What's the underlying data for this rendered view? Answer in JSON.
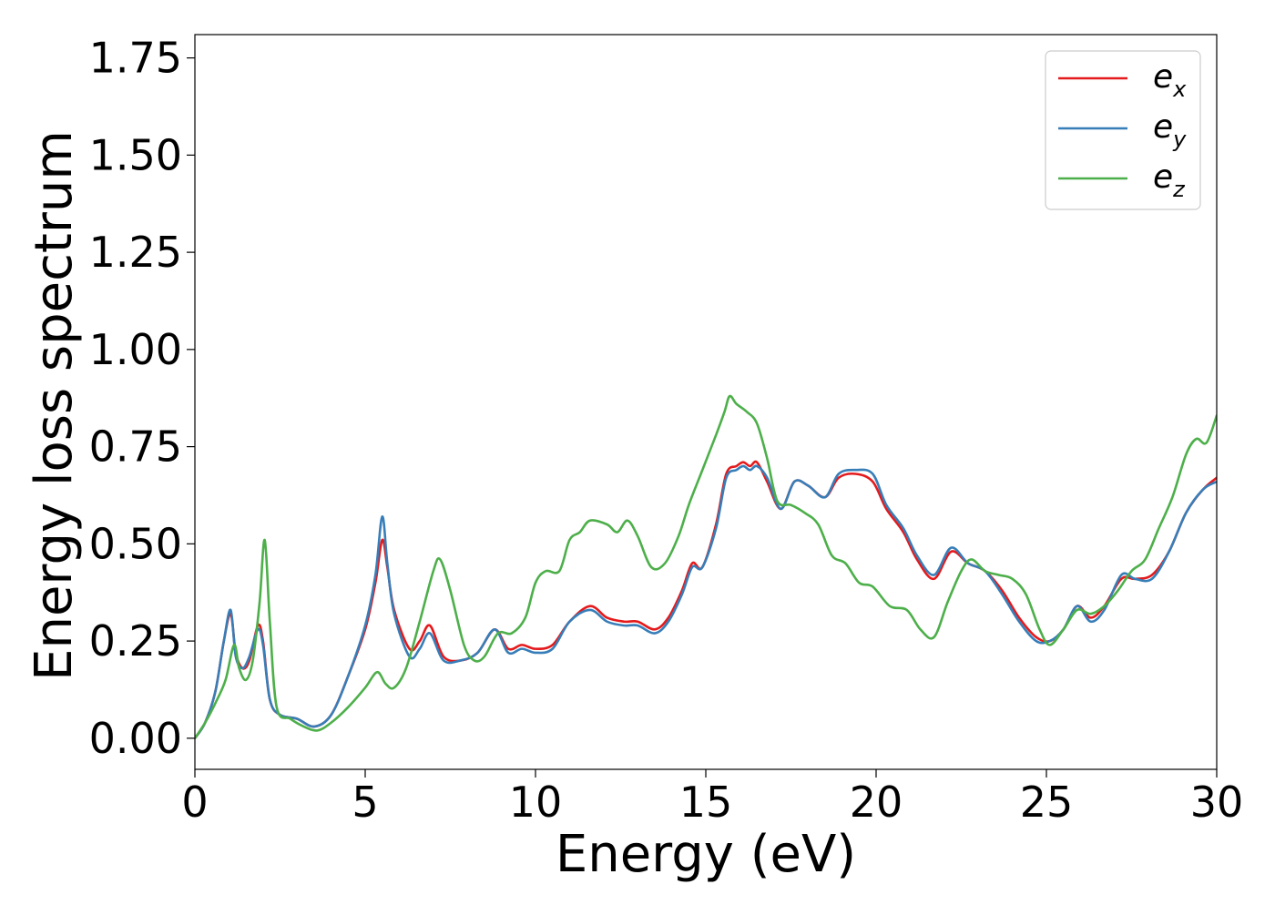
{
  "chart_data": {
    "type": "line",
    "title": "",
    "xlabel": "Energy (eV)",
    "ylabel": "Energy loss spectrum",
    "xlim": [
      0,
      30
    ],
    "ylim": [
      -0.08,
      1.81
    ],
    "xticks": [
      0,
      5,
      10,
      15,
      20,
      25,
      30
    ],
    "xtick_labels": [
      "0",
      "5",
      "10",
      "15",
      "20",
      "25",
      "30"
    ],
    "yticks": [
      0,
      0.25,
      0.5,
      0.75,
      1.0,
      1.25,
      1.5,
      1.75
    ],
    "ytick_labels": [
      "0.00",
      "0.25",
      "0.50",
      "0.75",
      "1.00",
      "1.25",
      "1.50",
      "1.75"
    ],
    "grid": false,
    "legend_position": "top-right",
    "series": [
      {
        "name": "e_x",
        "legend": {
          "base": "e",
          "sub": "x"
        },
        "color": "#e41a1c",
        "x": [
          0,
          0.3,
          0.6,
          0.85,
          1.05,
          1.2,
          1.4,
          1.6,
          1.85,
          2.0,
          2.2,
          2.5,
          3.0,
          3.5,
          4.0,
          4.5,
          5.0,
          5.3,
          5.5,
          5.65,
          5.85,
          6.3,
          6.6,
          6.9,
          7.3,
          7.8,
          8.3,
          8.8,
          9.2,
          9.6,
          10.0,
          10.5,
          11.0,
          11.6,
          12.1,
          12.6,
          13.0,
          13.5,
          13.9,
          14.3,
          14.6,
          14.9,
          15.3,
          15.6,
          15.9,
          16.1,
          16.3,
          16.5,
          16.8,
          17.2,
          17.6,
          18.0,
          18.5,
          18.9,
          19.4,
          19.9,
          20.3,
          20.8,
          21.2,
          21.7,
          22.2,
          22.7,
          23.2,
          23.7,
          24.2,
          24.7,
          25.1,
          25.5,
          25.9,
          26.3,
          26.7,
          27.2,
          27.6,
          28.1,
          28.6,
          29.1,
          29.6,
          30.0
        ],
        "y": [
          0,
          0.04,
          0.12,
          0.25,
          0.32,
          0.22,
          0.18,
          0.2,
          0.29,
          0.25,
          0.1,
          0.06,
          0.05,
          0.03,
          0.06,
          0.16,
          0.28,
          0.4,
          0.51,
          0.44,
          0.33,
          0.23,
          0.25,
          0.29,
          0.21,
          0.2,
          0.22,
          0.28,
          0.23,
          0.24,
          0.23,
          0.24,
          0.3,
          0.34,
          0.31,
          0.3,
          0.3,
          0.28,
          0.31,
          0.38,
          0.45,
          0.44,
          0.55,
          0.68,
          0.7,
          0.71,
          0.7,
          0.71,
          0.66,
          0.59,
          0.66,
          0.65,
          0.62,
          0.67,
          0.68,
          0.66,
          0.59,
          0.53,
          0.46,
          0.41,
          0.48,
          0.45,
          0.43,
          0.38,
          0.31,
          0.26,
          0.25,
          0.28,
          0.34,
          0.31,
          0.34,
          0.41,
          0.41,
          0.42,
          0.48,
          0.58,
          0.64,
          0.67
        ]
      },
      {
        "name": "e_y",
        "legend": {
          "base": "e",
          "sub": "y"
        },
        "color": "#377eb8",
        "x": [
          0,
          0.3,
          0.6,
          0.85,
          1.05,
          1.2,
          1.4,
          1.6,
          1.85,
          2.0,
          2.2,
          2.5,
          3.0,
          3.5,
          4.0,
          4.5,
          5.0,
          5.3,
          5.5,
          5.65,
          5.85,
          6.3,
          6.6,
          6.9,
          7.3,
          7.8,
          8.3,
          8.8,
          9.2,
          9.6,
          10.0,
          10.5,
          11.0,
          11.6,
          12.1,
          12.6,
          13.0,
          13.5,
          13.9,
          14.3,
          14.6,
          14.9,
          15.3,
          15.6,
          15.9,
          16.1,
          16.3,
          16.5,
          16.8,
          17.2,
          17.6,
          18.0,
          18.5,
          18.9,
          19.4,
          19.9,
          20.3,
          20.8,
          21.2,
          21.7,
          22.2,
          22.7,
          23.2,
          23.7,
          24.2,
          24.7,
          25.1,
          25.5,
          25.9,
          26.3,
          26.7,
          27.2,
          27.6,
          28.1,
          28.6,
          29.1,
          29.6,
          30.0
        ],
        "y": [
          0,
          0.04,
          0.12,
          0.25,
          0.33,
          0.21,
          0.18,
          0.21,
          0.28,
          0.24,
          0.1,
          0.06,
          0.05,
          0.03,
          0.06,
          0.16,
          0.29,
          0.42,
          0.57,
          0.45,
          0.32,
          0.21,
          0.23,
          0.27,
          0.2,
          0.2,
          0.22,
          0.28,
          0.22,
          0.23,
          0.22,
          0.23,
          0.3,
          0.33,
          0.3,
          0.29,
          0.29,
          0.27,
          0.3,
          0.37,
          0.44,
          0.44,
          0.54,
          0.67,
          0.69,
          0.7,
          0.69,
          0.7,
          0.67,
          0.59,
          0.66,
          0.65,
          0.62,
          0.68,
          0.69,
          0.68,
          0.6,
          0.54,
          0.47,
          0.42,
          0.49,
          0.45,
          0.43,
          0.37,
          0.3,
          0.25,
          0.25,
          0.28,
          0.34,
          0.3,
          0.33,
          0.42,
          0.41,
          0.41,
          0.48,
          0.58,
          0.64,
          0.66
        ]
      },
      {
        "name": "e_z",
        "legend": {
          "base": "e",
          "sub": "z"
        },
        "color": "#4daf4a",
        "x": [
          0,
          0.3,
          0.6,
          0.9,
          1.15,
          1.3,
          1.5,
          1.7,
          1.9,
          2.05,
          2.2,
          2.4,
          2.8,
          3.2,
          3.6,
          4.0,
          4.5,
          5.0,
          5.35,
          5.6,
          5.85,
          6.2,
          6.6,
          7.0,
          7.2,
          7.5,
          7.9,
          8.2,
          8.5,
          8.9,
          9.3,
          9.7,
          10.0,
          10.3,
          10.7,
          11.0,
          11.3,
          11.6,
          12.1,
          12.4,
          12.7,
          13.0,
          13.4,
          13.8,
          14.2,
          14.5,
          14.9,
          15.3,
          15.55,
          15.7,
          15.9,
          16.2,
          16.5,
          16.8,
          17.1,
          17.5,
          17.9,
          18.3,
          18.7,
          19.1,
          19.5,
          19.9,
          20.4,
          20.9,
          21.3,
          21.7,
          22.1,
          22.5,
          22.8,
          23.2,
          23.6,
          24.0,
          24.4,
          24.8,
          25.1,
          25.5,
          25.9,
          26.3,
          26.7,
          27.1,
          27.5,
          27.9,
          28.3,
          28.7,
          29.1,
          29.4,
          29.7,
          30.0
        ],
        "y": [
          0,
          0.04,
          0.09,
          0.15,
          0.24,
          0.18,
          0.15,
          0.2,
          0.35,
          0.51,
          0.3,
          0.08,
          0.05,
          0.03,
          0.02,
          0.04,
          0.08,
          0.13,
          0.17,
          0.14,
          0.13,
          0.18,
          0.3,
          0.43,
          0.46,
          0.38,
          0.24,
          0.2,
          0.21,
          0.27,
          0.27,
          0.31,
          0.4,
          0.43,
          0.43,
          0.51,
          0.53,
          0.56,
          0.55,
          0.53,
          0.56,
          0.52,
          0.44,
          0.45,
          0.52,
          0.6,
          0.69,
          0.78,
          0.84,
          0.88,
          0.86,
          0.84,
          0.81,
          0.72,
          0.61,
          0.6,
          0.58,
          0.55,
          0.47,
          0.45,
          0.4,
          0.39,
          0.34,
          0.33,
          0.28,
          0.26,
          0.35,
          0.43,
          0.46,
          0.43,
          0.42,
          0.41,
          0.37,
          0.28,
          0.24,
          0.28,
          0.33,
          0.32,
          0.34,
          0.38,
          0.43,
          0.46,
          0.54,
          0.62,
          0.73,
          0.77,
          0.76,
          0.83
        ]
      }
    ]
  }
}
